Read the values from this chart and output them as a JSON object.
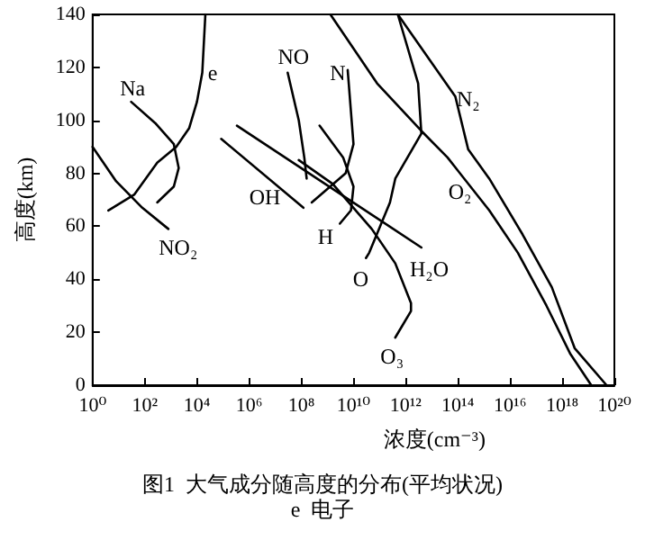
{
  "chart_data": {
    "type": "line",
    "title": "图1  大气成分随高度的分布(平均状况)",
    "xlabel": "浓度(cm⁻³)",
    "ylabel": "高度(km)",
    "log": "x",
    "marker": "none",
    "line_style": "solid",
    "grid": false,
    "xlim": [
      1,
      1e+20
    ],
    "ylim": [
      0,
      140
    ],
    "xticks": [
      {
        "value": 1,
        "label": "10⁰"
      },
      {
        "value": 100.0,
        "label": "10²"
      },
      {
        "value": 10000.0,
        "label": "10⁴"
      },
      {
        "value": 1000000.0,
        "label": "10⁶"
      },
      {
        "value": 100000000.0,
        "label": "10⁸"
      },
      {
        "value": 10000000000.0,
        "label": "10¹⁰"
      },
      {
        "value": 1000000000000.0,
        "label": "10¹²"
      },
      {
        "value": 100000000000000.0,
        "label": "10¹⁴"
      },
      {
        "value": 1e+16,
        "label": "10¹⁶"
      },
      {
        "value": 1e+18,
        "label": "10¹⁸"
      },
      {
        "value": 1e+20,
        "label": "10²⁰"
      }
    ],
    "yticks": [
      0,
      20,
      40,
      60,
      80,
      100,
      120,
      140
    ],
    "series": [
      {
        "color": "#000000",
        "x": [
          4,
          40,
          300,
          1600,
          5000,
          10000.0,
          16000.0,
          21000.0
        ],
        "values": [
          66,
          72,
          84,
          90,
          97,
          107,
          118,
          140
        ]
      },
      {
        "color": "#000000",
        "x": [
          30,
          250,
          1300,
          2000,
          1300,
          300
        ],
        "values": [
          107,
          99,
          91,
          82,
          75,
          69
        ]
      },
      {
        "color": "#000000",
        "x": [
          1,
          8,
          80,
          800
        ],
        "values": [
          90,
          77,
          67,
          59
        ]
      },
      {
        "color": "#000000",
        "x": [
          85000.0,
          120000000.0
        ],
        "values": [
          93,
          67
        ]
      },
      {
        "color": "#000000",
        "x": [
          340000.0,
          4000000000000.0
        ],
        "values": [
          98,
          52
        ]
      },
      {
        "color": "#000000",
        "x": [
          30000000.0,
          80000000.0,
          130000000.0,
          160000000.0
        ],
        "values": [
          118,
          100,
          86,
          78
        ]
      },
      {
        "color": "#000000",
        "x": [
          6000000000.0,
          10000000000.0,
          5000000000.0,
          250000000.0
        ],
        "values": [
          119,
          91,
          80,
          69
        ]
      },
      {
        "color": "#000000",
        "x": [
          500000000.0,
          4000000000.0,
          10000000000.0,
          8000000000.0,
          3000000000.0
        ],
        "values": [
          98,
          86,
          75,
          66,
          61
        ]
      },
      {
        "color": "#000000",
        "x": [
          80000000.0,
          1600000000.0,
          50000000000.0,
          400000000000.0,
          1600000000000.0,
          1600000000000.0,
          400000000000.0
        ],
        "values": [
          85,
          76,
          59,
          46,
          31,
          28,
          18
        ]
      },
      {
        "color": "#000000",
        "x": [
          500000000000.0,
          3000000000000.0,
          4000000000000.0,
          400000000000.0,
          250000000000.0,
          40000000000.0,
          30000000000.0
        ],
        "values": [
          140,
          114,
          95,
          78,
          69,
          50,
          48
        ]
      },
      {
        "color": "#000000",
        "x": [
          1300000000.0,
          80000000000.0,
          4000000000000.0,
          40000000000000.0,
          1600000000000000.0,
          2e+16,
          2.5e+17,
          2e+18,
          1.3e+19
        ],
        "values": [
          140,
          114,
          96,
          86,
          66,
          50,
          30,
          12,
          0
        ]
      },
      {
        "color": "#000000",
        "x": [
          500000000000.0,
          80000000000000.0,
          250000000000000.0,
          1600000000000000.0,
          3e+16,
          4e+17,
          3e+18,
          5e+19
        ],
        "values": [
          140,
          109,
          89,
          78,
          57,
          37,
          14,
          0
        ]
      }
    ],
    "annotations": [
      {
        "text": "e",
        "x": 40000.0,
        "y": 118
      },
      {
        "text": "Na",
        "x": 34,
        "y": 112
      },
      {
        "text": "NO₂",
        "x": 1900,
        "y": 52
      },
      {
        "text": "OH",
        "x": 4000000.0,
        "y": 71
      },
      {
        "text": "NO",
        "x": 50000000.0,
        "y": 124
      },
      {
        "text": "N",
        "x": 2500000000.0,
        "y": 118
      },
      {
        "text": "H",
        "x": 850000000.0,
        "y": 56
      },
      {
        "text": "H₂O",
        "x": 8000000000000.0,
        "y": 44
      },
      {
        "text": "O",
        "x": 19000000000.0,
        "y": 40
      },
      {
        "text": "O₃",
        "x": 300000000000.0,
        "y": 11
      },
      {
        "text": "O₂",
        "x": 120000000000000.0,
        "y": 73
      },
      {
        "text": "N₂",
        "x": 250000000000000.0,
        "y": 108
      },
      "e  电子"
    ]
  }
}
